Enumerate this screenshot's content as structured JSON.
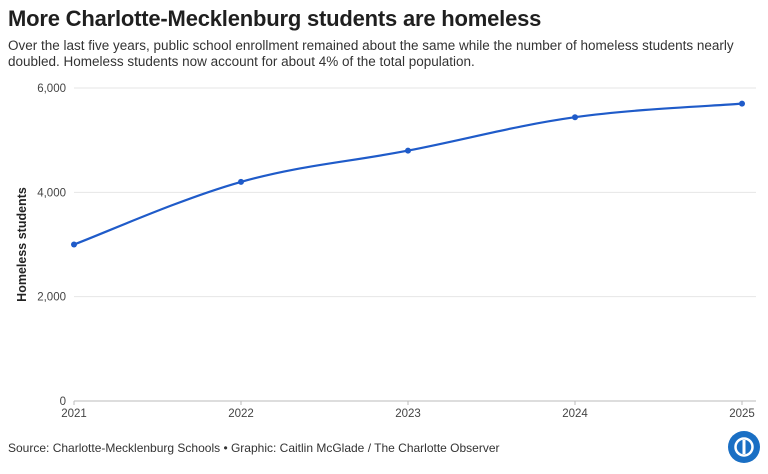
{
  "header": {
    "title": "More Charlotte-Mecklenburg students are homeless",
    "subtitle": "Over the last five years, public school enrollment remained about the same while the number of homeless students nearly doubled. Homeless students now account for about 4% of the total population."
  },
  "footer": {
    "source": "Source: Charlotte-Mecklenburg Schools • Graphic: Caitlin McGlade / The Charlotte Observer",
    "logo_icon": "charlotte-observer-logo-icon"
  },
  "chart_data": {
    "type": "line",
    "title": "More Charlotte-Mecklenburg students are homeless",
    "xlabel": "",
    "ylabel": "Homeless students",
    "x": [
      "2021",
      "2022",
      "2023",
      "2024",
      "2025"
    ],
    "series": [
      {
        "values": [
          3000,
          4200,
          4800,
          5440,
          5700
        ],
        "color": "#1f5bc9"
      }
    ],
    "ylim": [
      0,
      6000
    ],
    "yticks": [
      0,
      2000,
      4000,
      6000
    ],
    "ytick_labels": [
      "0",
      "2,000",
      "4,000",
      "6,000"
    ],
    "grid": true,
    "legend": "none"
  }
}
